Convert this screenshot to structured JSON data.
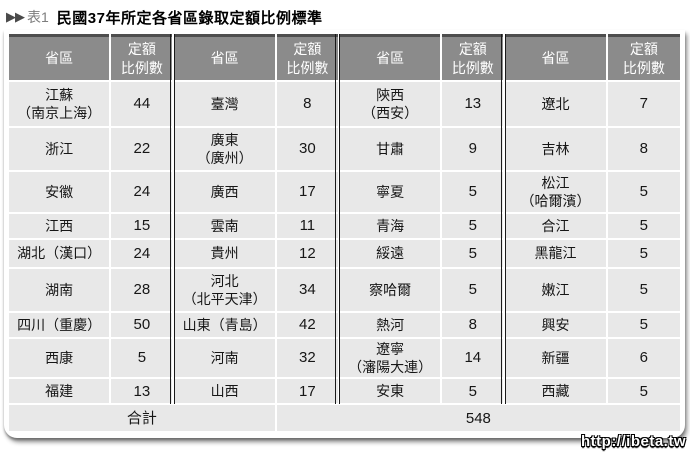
{
  "title": {
    "marker": "▶▶",
    "label": "表1",
    "text": "民國37年所定各省區錄取定額比例標準"
  },
  "watermark": "http://ibeta.tw",
  "colors": {
    "header_bg": "#8b8b8b",
    "header_top_border": "#4e4e4e",
    "cell_bg": "#e8e8e8",
    "separator": "#1a1a1a"
  },
  "chart_data": {
    "type": "table",
    "title": "表1 民國37年所定各省區錄取定額比例標準",
    "column_headers": [
      "省區",
      "定額\n比例數",
      "省區",
      "定額\n比例數",
      "省區",
      "定額\n比例數",
      "省區",
      "定額\n比例數"
    ],
    "rows": [
      [
        "江蘇\n（南京上海）",
        44,
        "臺灣",
        8,
        "陝西\n（西安）",
        13,
        "遼北",
        7
      ],
      [
        "浙江",
        22,
        "廣東\n（廣州）",
        30,
        "甘肅",
        9,
        "吉林",
        8
      ],
      [
        "安徽",
        24,
        "廣西",
        17,
        "寧夏",
        5,
        "松江\n（哈爾濱）",
        5
      ],
      [
        "江西",
        15,
        "雲南",
        11,
        "青海",
        5,
        "合江",
        5
      ],
      [
        "湖北（漢口）",
        24,
        "貴州",
        12,
        "綏遠",
        5,
        "黑龍江",
        5
      ],
      [
        "湖南",
        28,
        "河北\n（北平天津）",
        34,
        "察哈爾",
        5,
        "嫩江",
        5
      ],
      [
        "四川（重慶）",
        50,
        "山東（青島）",
        42,
        "熱河",
        8,
        "興安",
        5
      ],
      [
        "西康",
        5,
        "河南",
        32,
        "遼寧\n（瀋陽大連）",
        14,
        "新疆",
        6
      ],
      [
        "福建",
        13,
        "山西",
        17,
        "安東",
        5,
        "西藏",
        5
      ]
    ],
    "footer": {
      "label": "合計",
      "total": 548
    }
  }
}
